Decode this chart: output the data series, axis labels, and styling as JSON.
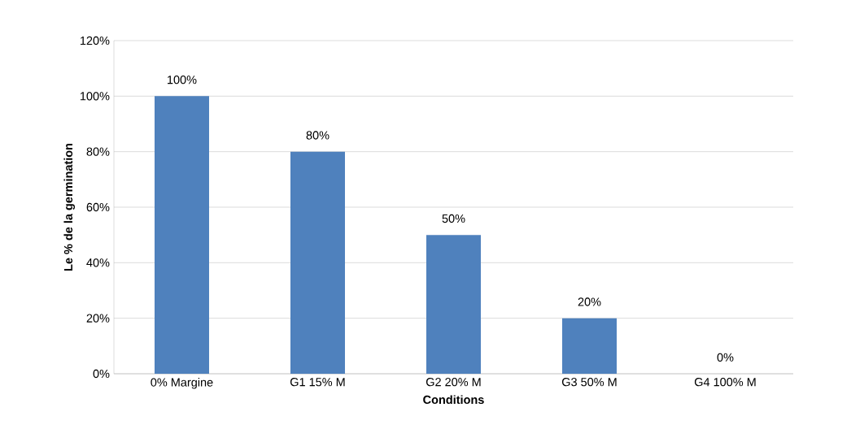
{
  "chart_data": {
    "type": "bar",
    "xlabel": "Conditions",
    "ylabel": "Le % de la germination",
    "categories": [
      "0% Margine",
      "G1 15% M",
      "G2 20% M",
      "G3 50% M",
      "G4 100% M"
    ],
    "values": [
      100,
      80,
      50,
      20,
      0
    ],
    "value_labels": [
      "100%",
      "80%",
      "50%",
      "20%",
      "0%"
    ],
    "color": "#4f81bd",
    "ylim": [
      0,
      120
    ],
    "yticks": [
      {
        "value": 0,
        "label": "0%"
      },
      {
        "value": 20,
        "label": "20%"
      },
      {
        "value": 40,
        "label": "40%"
      },
      {
        "value": 60,
        "label": "60%"
      },
      {
        "value": 80,
        "label": "80%"
      },
      {
        "value": 100,
        "label": "100%"
      },
      {
        "value": 120,
        "label": "120%"
      }
    ],
    "grid": "y"
  }
}
